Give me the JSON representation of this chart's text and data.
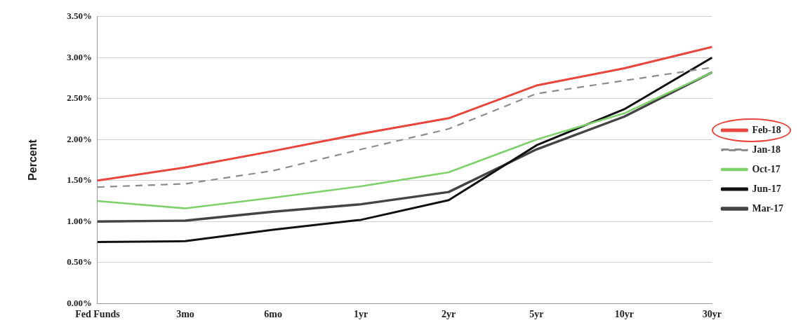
{
  "chart_data": {
    "type": "line",
    "ylabel": "Percent",
    "categories": [
      "Fed Funds",
      "3mo",
      "6mo",
      "1yr",
      "2yr",
      "5yr",
      "10yr",
      "30yr"
    ],
    "ylim": [
      0,
      3.5
    ],
    "yticks": [
      {
        "value": 0,
        "label": "0.00%"
      },
      {
        "value": 0.5,
        "label": "0.50%"
      },
      {
        "value": 1,
        "label": "1.00%"
      },
      {
        "value": 1.5,
        "label": "1.50%"
      },
      {
        "value": 2,
        "label": "2.00%"
      },
      {
        "value": 2.5,
        "label": "2.50%"
      },
      {
        "value": 3,
        "label": "3.00%"
      },
      {
        "value": 3.5,
        "label": "3.50%"
      }
    ],
    "grid": "y",
    "legend": "right",
    "marker": "none",
    "series": [
      {
        "name": "Feb-18",
        "color": "#e8463c",
        "values": [
          1.5,
          1.66,
          1.86,
          2.07,
          2.26,
          2.66,
          2.87,
          3.13
        ]
      },
      {
        "name": "Jan-18",
        "color": "#8c8c8c",
        "line_style": "dashed",
        "values": [
          1.42,
          1.46,
          1.62,
          1.88,
          2.13,
          2.56,
          2.72,
          2.88
        ]
      },
      {
        "name": "Oct-17",
        "color": "#7ed16a",
        "values": [
          1.25,
          1.16,
          1.29,
          1.43,
          1.6,
          2.0,
          2.32,
          2.82
        ]
      },
      {
        "name": "Jun-17",
        "color": "#111111",
        "values": [
          0.75,
          0.76,
          0.9,
          1.02,
          1.26,
          1.93,
          2.37,
          3.0
        ]
      },
      {
        "name": "Mar-17",
        "color": "#444444",
        "values": [
          1.0,
          1.01,
          1.12,
          1.21,
          1.36,
          1.88,
          2.28,
          2.82
        ]
      }
    ]
  }
}
